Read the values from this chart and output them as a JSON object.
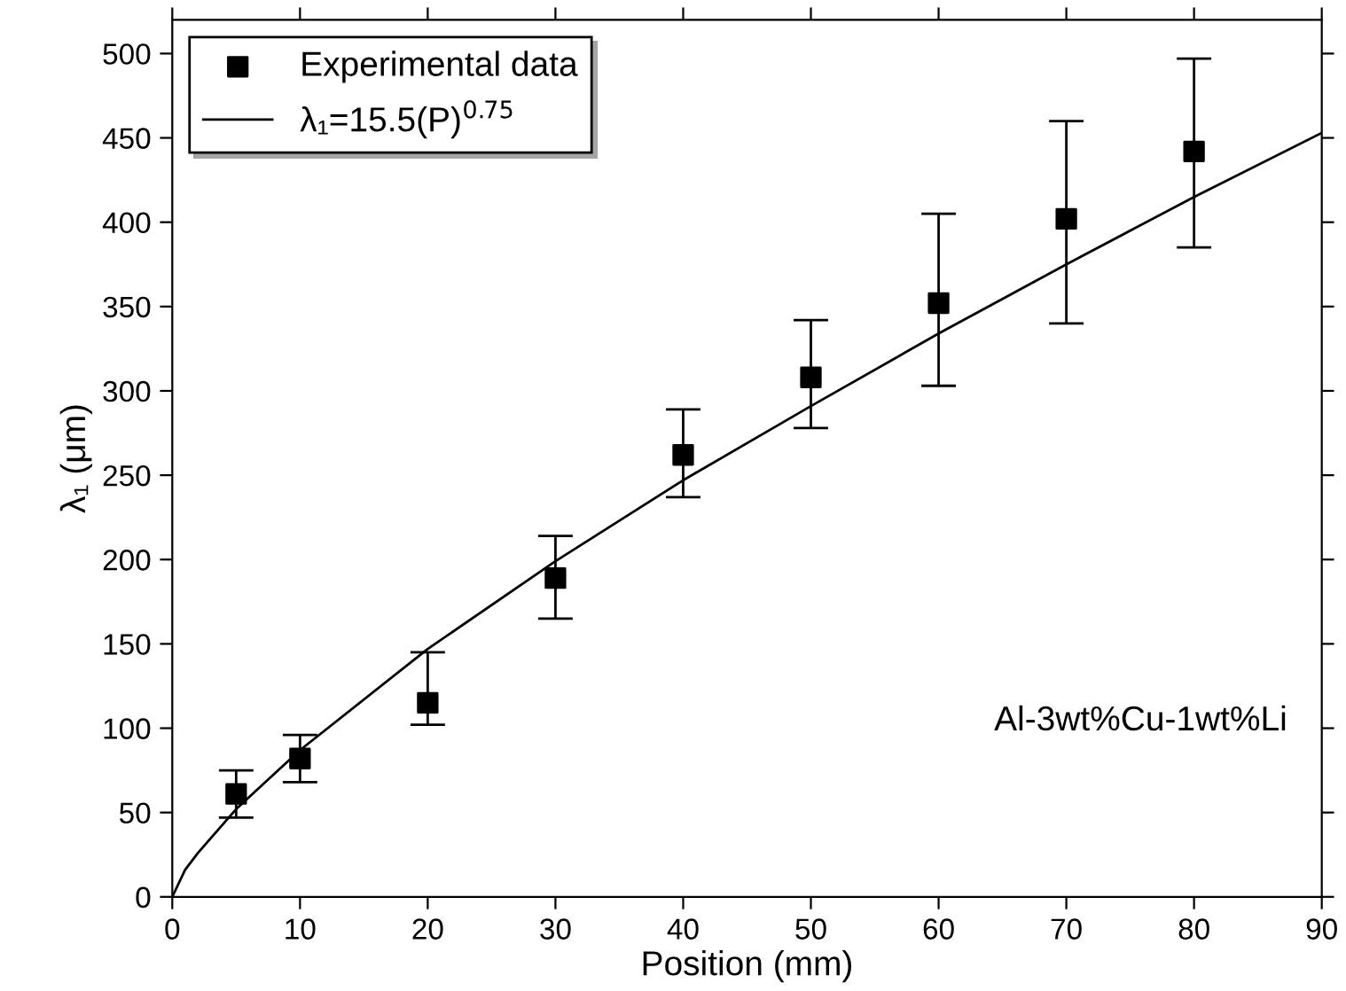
{
  "chart_data": {
    "type": "scatter",
    "xlabel": "Position (mm)",
    "ylabel": "λ₁ (μm)",
    "xlim": [
      0,
      90
    ],
    "xticks": [
      0,
      10,
      20,
      30,
      40,
      50,
      60,
      70,
      80,
      90
    ],
    "ylim": [
      0,
      520
    ],
    "yticks": [
      0,
      50,
      100,
      150,
      200,
      250,
      300,
      350,
      400,
      450,
      500
    ],
    "series": [
      {
        "name": "Experimental data",
        "marker": "square",
        "color": "#000000",
        "x": [
          5,
          10,
          20,
          30,
          40,
          50,
          60,
          70,
          80
        ],
        "values": [
          61,
          82,
          115,
          189,
          262,
          308,
          352,
          402,
          442
        ],
        "errors": [
          [
            47,
            75
          ],
          [
            68,
            96
          ],
          [
            102,
            145
          ],
          [
            165,
            214
          ],
          [
            237,
            289
          ],
          [
            278,
            342
          ],
          [
            303,
            405
          ],
          [
            340,
            460
          ],
          [
            385,
            497
          ]
        ]
      },
      {
        "name": "λ₁=15.5(P)$^{0.75}$",
        "type": "line",
        "marker": "none",
        "line_style": "solid",
        "color": "#000000",
        "x": [
          0,
          1,
          2,
          5,
          10,
          20,
          30,
          40,
          50,
          60,
          70,
          80,
          90
        ],
        "values": [
          0,
          16,
          26,
          52,
          87,
          147,
          199,
          247,
          291,
          334,
          375,
          415,
          453
        ]
      }
    ],
    "annotations": [
      "Al-3wt%Cu-1wt%Li"
    ],
    "legend": "top left",
    "grid": false
  }
}
